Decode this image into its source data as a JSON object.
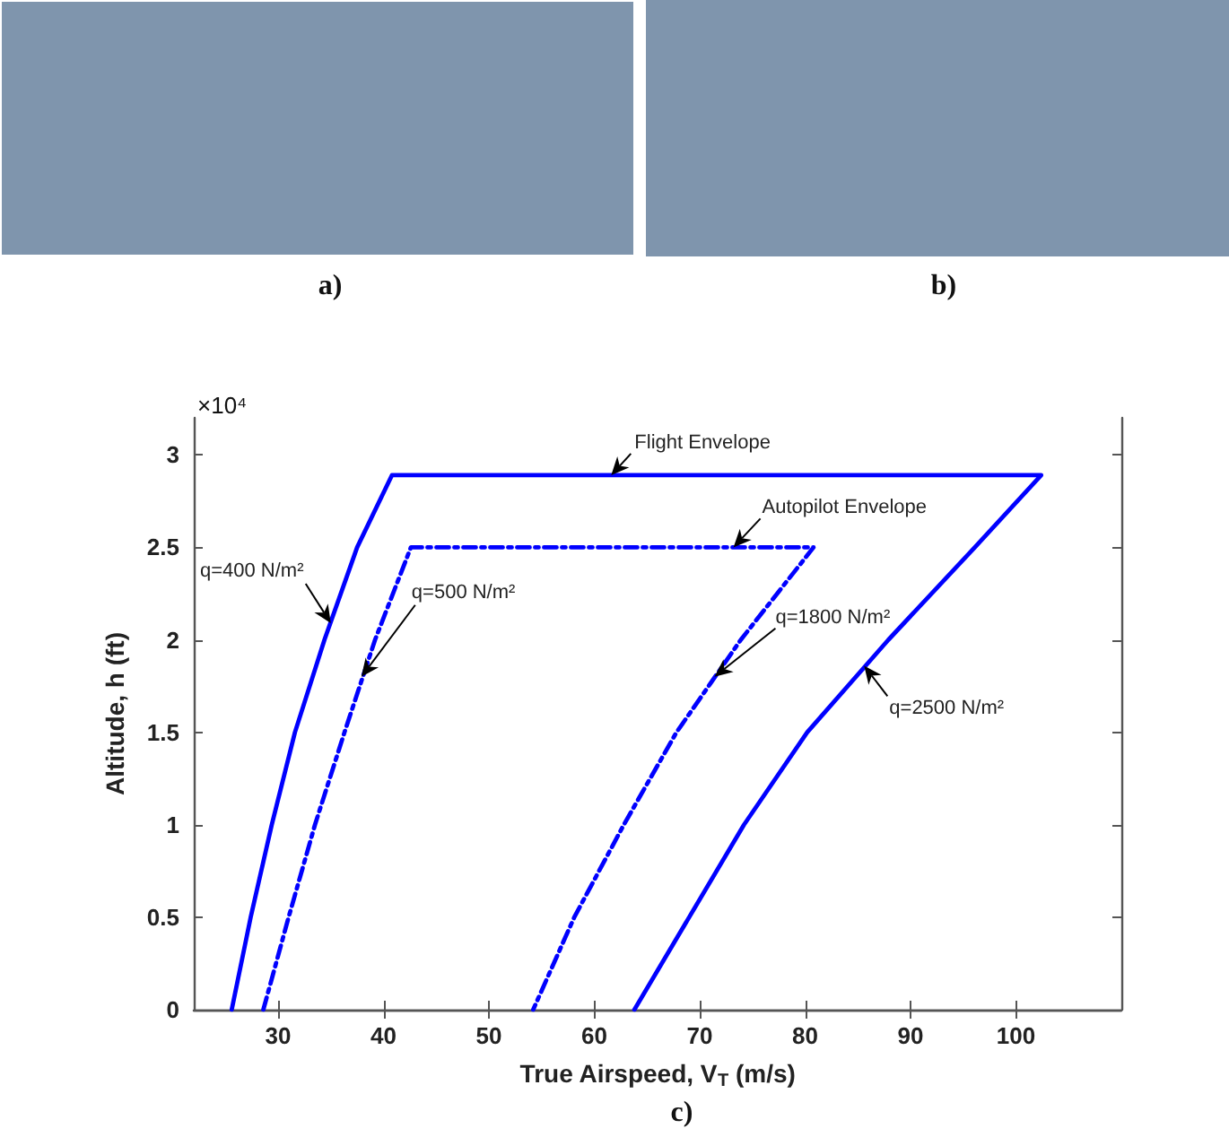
{
  "chart_data": {
    "type": "line",
    "xlabel": "True Airspeed, V$_{T}$ (m/s)",
    "ylabel": "Altitude, h (ft)",
    "xlim": [
      22,
      110
    ],
    "xticks": [
      30,
      40,
      50,
      60,
      70,
      80,
      90,
      100
    ],
    "ylim": [
      0,
      3.2
    ],
    "yticks": [
      0,
      0.5,
      1,
      1.5,
      2,
      2.5,
      3
    ],
    "marker": "none",
    "series": [
      {
        "color": "#0000ff",
        "line_style": "solid",
        "x": [
          25.6,
          27.4,
          29.4,
          31.6,
          34.4,
          37.5,
          40.8,
          102.4,
          96.1,
          87.9,
          80.2,
          74.2,
          69.0,
          63.8
        ],
        "values": [
          0,
          0.5,
          1,
          1.5,
          2,
          2.5,
          2.89,
          2.89,
          2.5,
          2,
          1.5,
          1,
          0.5,
          0
        ]
      },
      {
        "color": "#0000ff",
        "line_style": "dashed",
        "x": [
          28.6,
          31.0,
          33.5,
          36.3,
          39.2,
          42.6,
          80.8,
          73.9,
          67.8,
          62.8,
          58.1,
          54.2
        ],
        "values": [
          0,
          0.5,
          1,
          1.5,
          2,
          2.5,
          2.5,
          2,
          1.5,
          1,
          0.5,
          0
        ]
      }
    ],
    "annotations": [
      "a)",
      "b)",
      "×10⁴",
      {
        "text": "Flight Envelope",
        "x": 61.6,
        "y": 2.89
      },
      {
        "text": "Autopilot Envelope",
        "x": 73.2,
        "y": 2.5
      },
      {
        "text": "q=400 N/m²",
        "x": 35.0,
        "y": 2.09
      },
      {
        "text": "q=500 N/m²",
        "x": 37.9,
        "y": 1.8
      },
      {
        "text": "q=1800 N/m²",
        "x": 71.4,
        "y": 1.8
      },
      {
        "text": "q=2500 N/m²",
        "x": 85.6,
        "y": 1.86
      },
      "c)"
    ]
  }
}
